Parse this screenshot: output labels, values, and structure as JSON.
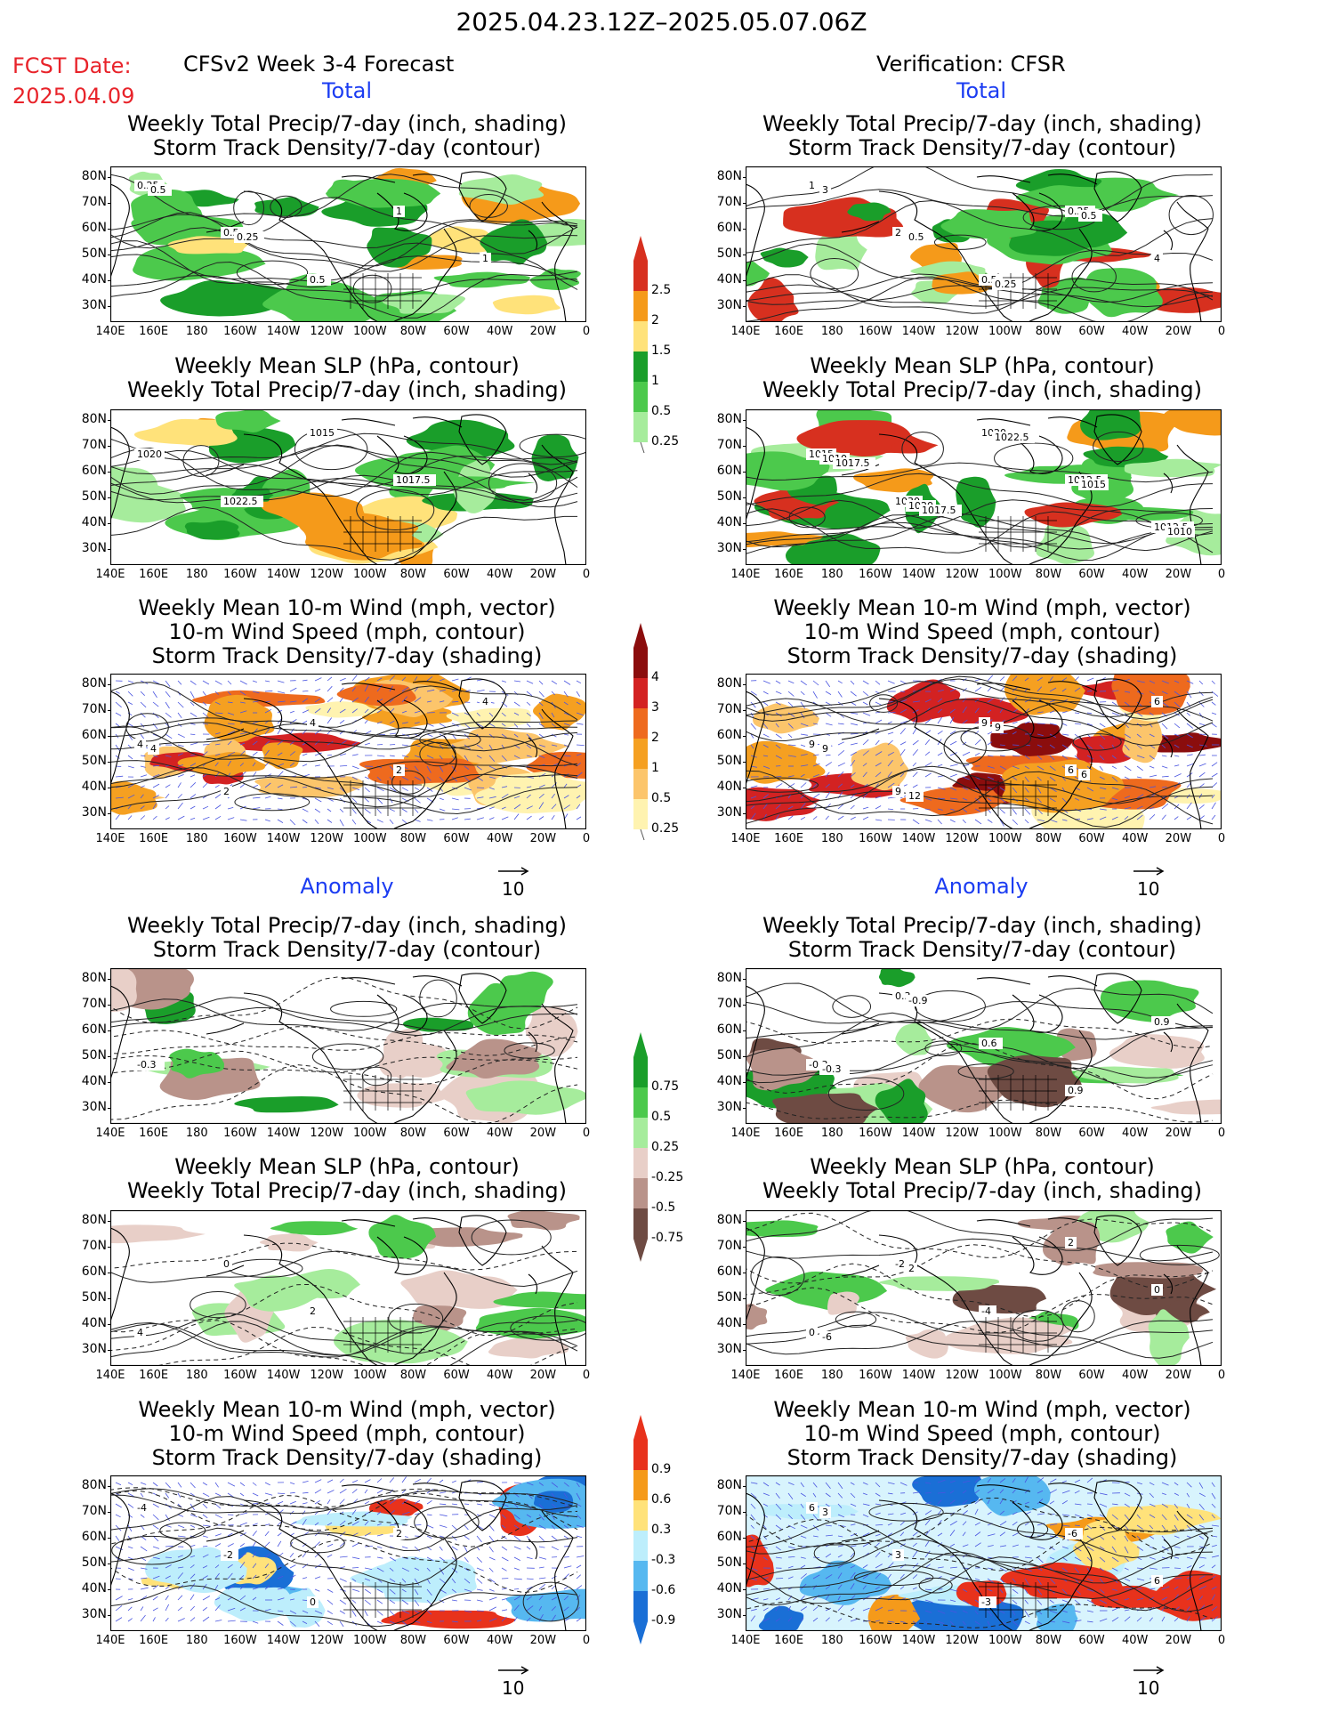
{
  "header": {
    "date_range": "2025.04.23.12Z–2025.05.07.06Z",
    "fcst_label": "FCST Date:",
    "fcst_date": "2025.04.09",
    "left_heading": "CFSv2 Week 3-4 Forecast",
    "right_heading": "Verification: CFSR",
    "total_label": "Total",
    "anomaly_label": "Anomaly"
  },
  "titles": {
    "precip_storm": [
      "Weekly Total Precip/7-day (inch, shading)",
      "Storm Track Density/7-day (contour)"
    ],
    "slp_precip": [
      "Weekly Mean SLP (hPa, contour)",
      "Weekly Total Precip/7-day (inch, shading)"
    ],
    "wind_storm": [
      "Weekly Mean 10-m Wind (mph, vector)",
      "10-m Wind Speed (mph, contour)",
      "Storm Track Density/7-day (shading)"
    ]
  },
  "axes": {
    "lat_labels": [
      "80N",
      "70N",
      "60N",
      "50N",
      "40N",
      "30N"
    ],
    "lon_labels": [
      "140E",
      "160E",
      "180",
      "160W",
      "140W",
      "120W",
      "100W",
      "80W",
      "60W",
      "40W",
      "20W",
      "0"
    ]
  },
  "vector_reference": "10",
  "colorbars": {
    "precip_total": {
      "labels": [
        "2.5",
        "2",
        "1.5",
        "1",
        "0.5",
        "0.25"
      ],
      "colors": [
        "#d7301f",
        "#f59a1a",
        "#ffe27a",
        "#1a9e2a",
        "#4cc94c",
        "#a6ec9c"
      ]
    },
    "storm_total": {
      "labels": [
        "4",
        "3",
        "2",
        "1",
        "0.5",
        "0.25"
      ],
      "colors": [
        "#8b0d0d",
        "#d32222",
        "#ee6a1e",
        "#f5a021",
        "#fcc56b",
        "#fff3b0"
      ]
    },
    "precip_anom": {
      "labels": [
        "0.75",
        "0.5",
        "0.25",
        "-0.25",
        "-0.5",
        "-0.75"
      ],
      "colors": [
        "#1a9e2a",
        "#4cc94c",
        "#a6ec9c",
        "#e8cfc8",
        "#b9938a",
        "#6e4b43"
      ]
    },
    "storm_anom": {
      "labels": [
        "0.9",
        "0.6",
        "0.3",
        "-0.3",
        "-0.6",
        "-0.9"
      ],
      "colors": [
        "#e8321c",
        "#f59a1a",
        "#ffe27a",
        "#bdeefc",
        "#56b8f0",
        "#1a6fd6"
      ]
    }
  },
  "panels": [
    {
      "id": "fc-total-precip",
      "contour_labels": [
        "0.25",
        "0.5",
        "0.5",
        "1",
        "1",
        "0.5",
        "0.25"
      ]
    },
    {
      "id": "ob-total-precip",
      "contour_labels": [
        "1",
        "2",
        "0.5",
        "0.25",
        "4",
        "3",
        "0.5",
        "0.25",
        "0.5"
      ]
    },
    {
      "id": "fc-total-slp",
      "contour_labels": [
        "1020",
        "1022.5",
        "1015",
        "1017.5"
      ]
    },
    {
      "id": "ob-total-slp",
      "contour_labels": [
        "1015",
        "1030",
        "1020",
        "1012.5",
        "1012.5",
        "1010",
        "1020",
        "1022.5",
        "1015",
        "1010",
        "1017.5",
        "1017.5"
      ]
    },
    {
      "id": "fc-total-wind",
      "contour_labels": [
        "4",
        "2",
        "4",
        "2",
        "4",
        "4"
      ]
    },
    {
      "id": "ob-total-wind",
      "contour_labels": [
        "9",
        "9",
        "9",
        "6",
        "6",
        "9",
        "12",
        "9",
        "6"
      ]
    },
    {
      "id": "fc-anom-precip",
      "contour_labels": [
        "-0.3"
      ]
    },
    {
      "id": "ob-anom-precip",
      "contour_labels": [
        "-0.3",
        "0.3",
        "0.6",
        "0.9",
        "0.9",
        "-0.3",
        "-0.9"
      ]
    },
    {
      "id": "fc-anom-slp",
      "contour_labels": [
        "4",
        "0",
        "2"
      ]
    },
    {
      "id": "ob-anom-slp",
      "contour_labels": [
        "0",
        "-2",
        "-4",
        "2",
        "0",
        "-6",
        "2"
      ]
    },
    {
      "id": "fc-anom-wind",
      "contour_labels": [
        "-4",
        "-2",
        "0",
        "2"
      ]
    },
    {
      "id": "ob-anom-wind",
      "contour_labels": [
        "6",
        "3",
        "-3",
        "-6",
        "6",
        "3"
      ]
    }
  ]
}
